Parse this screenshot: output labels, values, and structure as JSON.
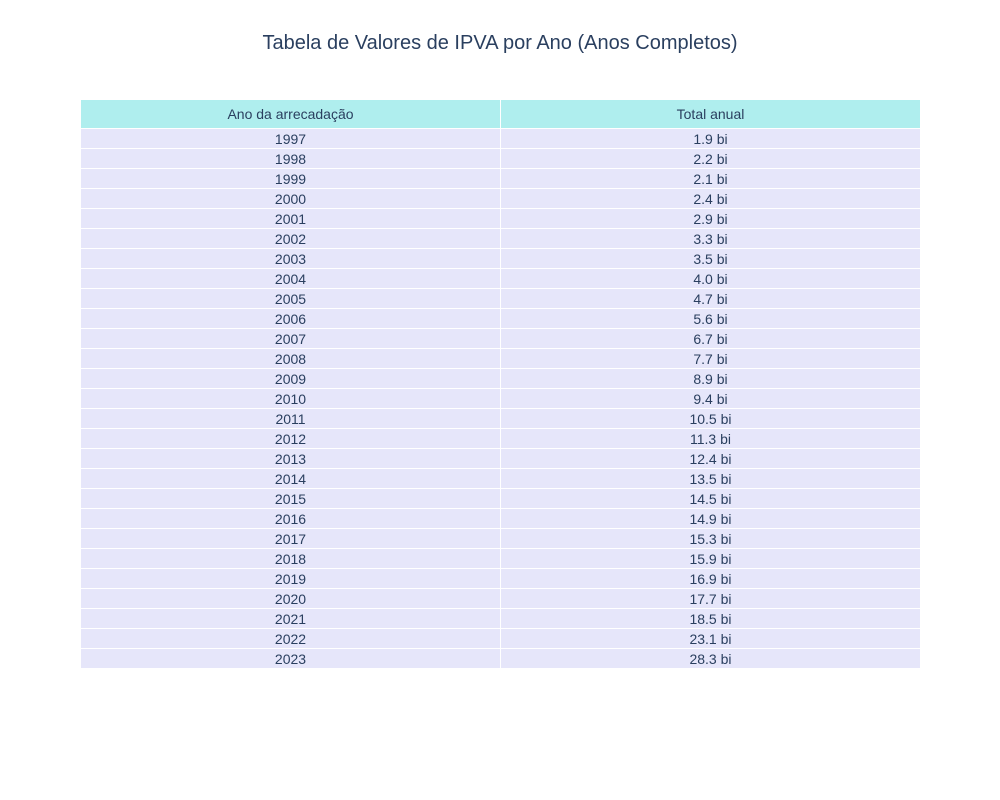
{
  "chart_data": {
    "type": "table",
    "title": "Tabela de Valores de IPVA por Ano (Anos Completos)",
    "columns": [
      "Ano da arrecadação",
      "Total anual"
    ],
    "rows": [
      [
        "1997",
        "1.9 bi"
      ],
      [
        "1998",
        "2.2 bi"
      ],
      [
        "1999",
        "2.1 bi"
      ],
      [
        "2000",
        "2.4 bi"
      ],
      [
        "2001",
        "2.9 bi"
      ],
      [
        "2002",
        "3.3 bi"
      ],
      [
        "2003",
        "3.5 bi"
      ],
      [
        "2004",
        "4.0 bi"
      ],
      [
        "2005",
        "4.7 bi"
      ],
      [
        "2006",
        "5.6 bi"
      ],
      [
        "2007",
        "6.7 bi"
      ],
      [
        "2008",
        "7.7 bi"
      ],
      [
        "2009",
        "8.9 bi"
      ],
      [
        "2010",
        "9.4 bi"
      ],
      [
        "2011",
        "10.5 bi"
      ],
      [
        "2012",
        "11.3 bi"
      ],
      [
        "2013",
        "12.4 bi"
      ],
      [
        "2014",
        "13.5 bi"
      ],
      [
        "2015",
        "14.5 bi"
      ],
      [
        "2016",
        "14.9 bi"
      ],
      [
        "2017",
        "15.3 bi"
      ],
      [
        "2018",
        "15.9 bi"
      ],
      [
        "2019",
        "16.9 bi"
      ],
      [
        "2020",
        "17.7 bi"
      ],
      [
        "2021",
        "18.5 bi"
      ],
      [
        "2022",
        "23.1 bi"
      ],
      [
        "2023",
        "28.3 bi"
      ]
    ],
    "colors": {
      "header_fill": "#afeeee",
      "cell_fill": "#e6e6fa",
      "text": "#2a3f5f"
    }
  }
}
